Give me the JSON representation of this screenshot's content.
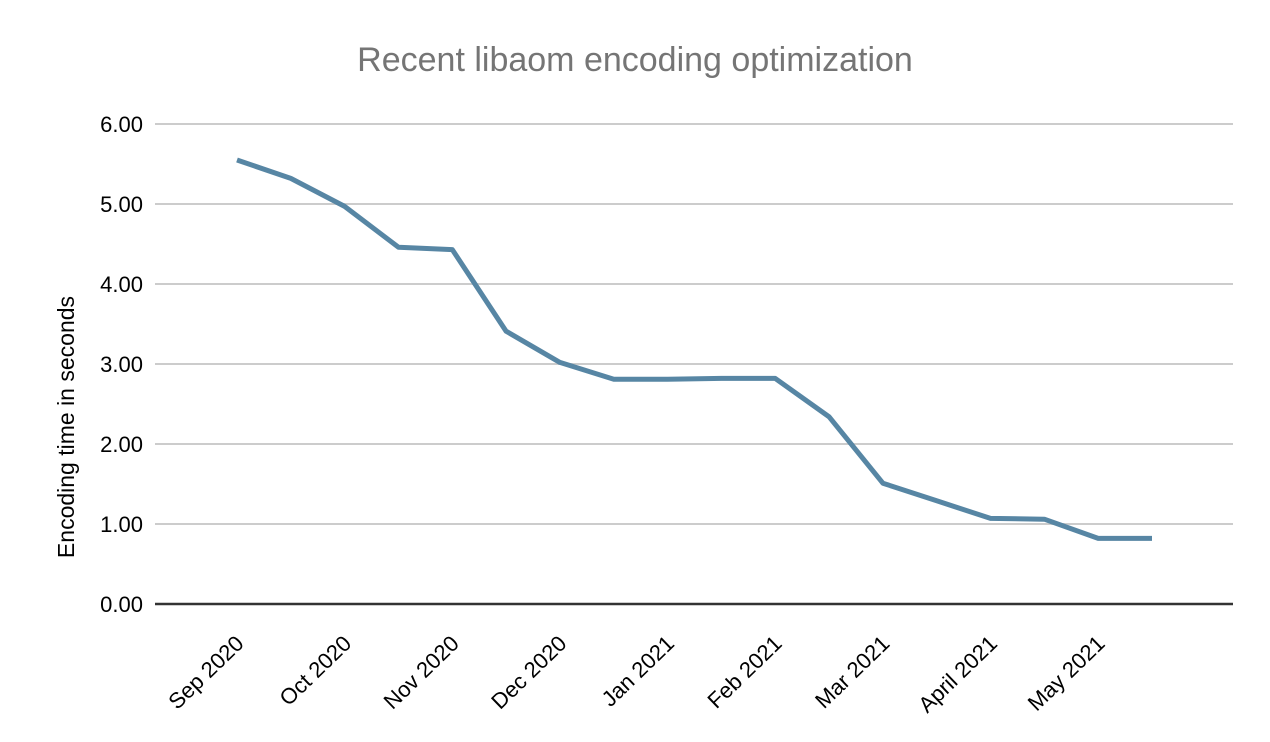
{
  "page": {
    "background": "#ffffff"
  },
  "chart_data": {
    "type": "line",
    "title": "Recent libaom encoding optimization",
    "xlabel": "",
    "ylabel": "Encoding time in seconds",
    "x_tick_labels": [
      "Sep 2020",
      "Oct 2020",
      "Nov 2020",
      "Dec 2020",
      "Jan 2021",
      "Feb 2021",
      "Mar 2021",
      "April 2021",
      "May 2021"
    ],
    "x_tick_point_indices": [
      0,
      2,
      4,
      6,
      8,
      10,
      12,
      14,
      16
    ],
    "points_per_month": 2,
    "y_tick_labels": [
      "0.00",
      "1.00",
      "2.00",
      "3.00",
      "4.00",
      "5.00",
      "6.00"
    ],
    "ylim": [
      0,
      6
    ],
    "grid": "horizontal",
    "legend_position": "none",
    "series": [
      {
        "name": "Encoding time in seconds",
        "color": "#5786a4",
        "values": [
          5.55,
          5.32,
          4.97,
          4.46,
          4.43,
          3.41,
          3.02,
          2.81,
          2.81,
          2.82,
          2.82,
          2.34,
          1.51,
          1.29,
          1.07,
          1.06,
          0.82,
          0.82
        ]
      }
    ],
    "colors": {
      "title": "#757575",
      "tick_labels": "#000000",
      "gridline": "#cccccc",
      "axis_line": "#333333",
      "background": "#ffffff"
    }
  }
}
